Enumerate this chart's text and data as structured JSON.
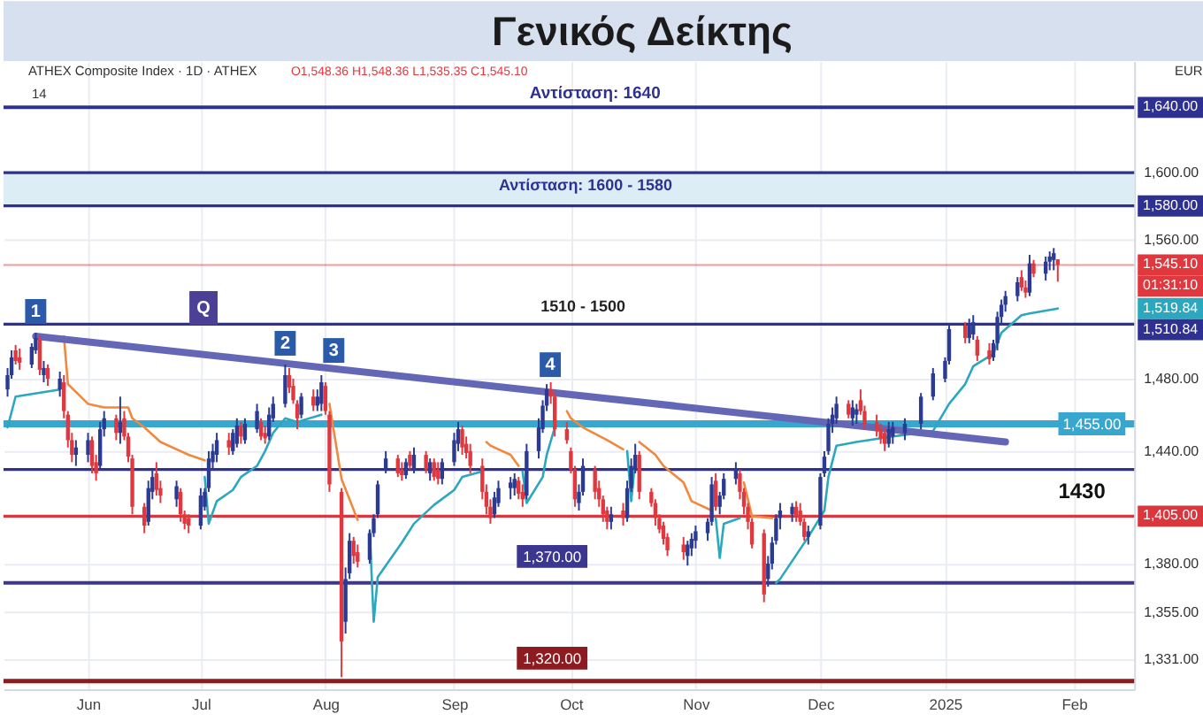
{
  "chart_data": {
    "type": "candlestick",
    "title": "Γενικός Δείκτης",
    "subtitle": "ATHEX Composite Index · 1D · ATHEX",
    "x": [
      "2024-05-14",
      "2024-05-15",
      "2024-05-16",
      "2024-05-17",
      "2024-05-20",
      "2024-05-21",
      "2024-05-22",
      "2024-05-23",
      "2024-05-24",
      "2024-05-27",
      "2024-05-28",
      "2024-05-29",
      "2024-05-30",
      "2024-05-31",
      "2024-06-03",
      "2024-06-04",
      "2024-06-05",
      "2024-06-06",
      "2024-06-07",
      "2024-06-10",
      "2024-06-11",
      "2024-06-12",
      "2024-06-13",
      "2024-06-14",
      "2024-06-17",
      "2024-06-18",
      "2024-06-19",
      "2024-06-20",
      "2024-06-21",
      "2024-06-25",
      "2024-06-26",
      "2024-06-27",
      "2024-06-28",
      "2024-07-01",
      "2024-07-02",
      "2024-07-03",
      "2024-07-04",
      "2024-07-05",
      "2024-07-08",
      "2024-07-09",
      "2024-07-10",
      "2024-07-11",
      "2024-07-12",
      "2024-07-15",
      "2024-07-16",
      "2024-07-17",
      "2024-07-18",
      "2024-07-19",
      "2024-07-22",
      "2024-07-23",
      "2024-07-24",
      "2024-07-25",
      "2024-07-26",
      "2024-07-29",
      "2024-07-30",
      "2024-07-31",
      "2024-08-01",
      "2024-08-02",
      "2024-08-05",
      "2024-08-06",
      "2024-08-07",
      "2024-08-08",
      "2024-08-09",
      "2024-08-12",
      "2024-08-13",
      "2024-08-14",
      "2024-08-16",
      "2024-08-19",
      "2024-08-20",
      "2024-08-21",
      "2024-08-22",
      "2024-08-23",
      "2024-08-26",
      "2024-08-27",
      "2024-08-28",
      "2024-08-29",
      "2024-08-30",
      "2024-09-02",
      "2024-09-03",
      "2024-09-04",
      "2024-09-05",
      "2024-09-06",
      "2024-09-09",
      "2024-09-10",
      "2024-09-11",
      "2024-09-12",
      "2024-09-13",
      "2024-09-16",
      "2024-09-17",
      "2024-09-18",
      "2024-09-19",
      "2024-09-20",
      "2024-09-23",
      "2024-09-24",
      "2024-09-25",
      "2024-09-26",
      "2024-09-27",
      "2024-09-30",
      "2024-10-01",
      "2024-10-02",
      "2024-10-03",
      "2024-10-04",
      "2024-10-07",
      "2024-10-08",
      "2024-10-09",
      "2024-10-10",
      "2024-10-11",
      "2024-10-14",
      "2024-10-15",
      "2024-10-16",
      "2024-10-17",
      "2024-10-18",
      "2024-10-21",
      "2024-10-22",
      "2024-10-23",
      "2024-10-24",
      "2024-10-25",
      "2024-10-29",
      "2024-10-30",
      "2024-10-31",
      "2024-11-01",
      "2024-11-04",
      "2024-11-05",
      "2024-11-06",
      "2024-11-07",
      "2024-11-08",
      "2024-11-11",
      "2024-11-12",
      "2024-11-13",
      "2024-11-14",
      "2024-11-15",
      "2024-11-18",
      "2024-11-19",
      "2024-11-20",
      "2024-11-21",
      "2024-11-22",
      "2024-11-25",
      "2024-11-26",
      "2024-11-27",
      "2024-11-28",
      "2024-11-29",
      "2024-12-02",
      "2024-12-03",
      "2024-12-04",
      "2024-12-05",
      "2024-12-06",
      "2024-12-09",
      "2024-12-10",
      "2024-12-11",
      "2024-12-12",
      "2024-12-13",
      "2024-12-16",
      "2024-12-17",
      "2024-12-18",
      "2024-12-19",
      "2024-12-20",
      "2024-12-23",
      "2024-12-27",
      "2024-12-30",
      "2025-01-02",
      "2025-01-03",
      "2025-01-07",
      "2025-01-08",
      "2025-01-09",
      "2025-01-10",
      "2025-01-13",
      "2025-01-14",
      "2025-01-15",
      "2025-01-16",
      "2025-01-17",
      "2025-01-20",
      "2025-01-21",
      "2025-01-22",
      "2025-01-23",
      "2025-01-24",
      "2025-01-27",
      "2025-01-28",
      "2025-01-29",
      "2025-01-30"
    ],
    "ohlc": [
      [
        1474,
        1486,
        1470,
        1482
      ],
      [
        1482,
        1496,
        1480,
        1492
      ],
      [
        1496,
        1499,
        1488,
        1490
      ],
      [
        1492,
        1497,
        1485,
        1489
      ],
      [
        1488,
        1500,
        1486,
        1498
      ],
      [
        1496,
        1506,
        1494,
        1503
      ],
      [
        1502,
        1504,
        1482,
        1485
      ],
      [
        1482,
        1490,
        1478,
        1486
      ],
      [
        1486,
        1488,
        1476,
        1480
      ],
      [
        1474,
        1484,
        1470,
        1480
      ],
      [
        1478,
        1482,
        1458,
        1462
      ],
      [
        1460,
        1462,
        1442,
        1446
      ],
      [
        1446,
        1450,
        1434,
        1438
      ],
      [
        1438,
        1446,
        1432,
        1442
      ],
      [
        1438,
        1450,
        1434,
        1446
      ],
      [
        1446,
        1448,
        1428,
        1432
      ],
      [
        1434,
        1438,
        1424,
        1428
      ],
      [
        1432,
        1456,
        1430,
        1452
      ],
      [
        1452,
        1462,
        1448,
        1458
      ],
      [
        1458,
        1460,
        1446,
        1450
      ],
      [
        1450,
        1470,
        1444,
        1456
      ],
      [
        1458,
        1462,
        1446,
        1448
      ],
      [
        1448,
        1450,
        1434,
        1437
      ],
      [
        1436,
        1438,
        1406,
        1410
      ],
      [
        1410,
        1412,
        1396,
        1400
      ],
      [
        1402,
        1424,
        1400,
        1420
      ],
      [
        1418,
        1430,
        1414,
        1426
      ],
      [
        1428,
        1434,
        1416,
        1419
      ],
      [
        1420,
        1424,
        1412,
        1416
      ],
      [
        1414,
        1424,
        1410,
        1421
      ],
      [
        1418,
        1420,
        1402,
        1406
      ],
      [
        1406,
        1408,
        1398,
        1401
      ],
      [
        1404,
        1406,
        1396,
        1400
      ],
      [
        1400,
        1420,
        1398,
        1416
      ],
      [
        1410,
        1420,
        1408,
        1418
      ],
      [
        1420,
        1440,
        1418,
        1436
      ],
      [
        1434,
        1444,
        1430,
        1440
      ],
      [
        1438,
        1450,
        1434,
        1446
      ],
      [
        1446,
        1450,
        1438,
        1442
      ],
      [
        1440,
        1452,
        1438,
        1450
      ],
      [
        1444,
        1458,
        1442,
        1454
      ],
      [
        1454,
        1456,
        1444,
        1448
      ],
      [
        1446,
        1458,
        1444,
        1455
      ],
      [
        1452,
        1466,
        1450,
        1462
      ],
      [
        1456,
        1458,
        1446,
        1448
      ],
      [
        1450,
        1454,
        1444,
        1447
      ],
      [
        1448,
        1464,
        1446,
        1460
      ],
      [
        1458,
        1470,
        1456,
        1466
      ],
      [
        1466,
        1488,
        1464,
        1482
      ],
      [
        1482,
        1486,
        1472,
        1475
      ],
      [
        1476,
        1480,
        1466,
        1468
      ],
      [
        1466,
        1468,
        1452,
        1458
      ],
      [
        1460,
        1472,
        1458,
        1470
      ],
      [
        1470,
        1474,
        1462,
        1465
      ],
      [
        1465,
        1474,
        1462,
        1470
      ],
      [
        1466,
        1482,
        1462,
        1478
      ],
      [
        1476,
        1478,
        1460,
        1462
      ],
      [
        1460,
        1462,
        1418,
        1422
      ],
      [
        1418,
        1420,
        1322,
        1340
      ],
      [
        1350,
        1378,
        1344,
        1372
      ],
      [
        1375,
        1396,
        1372,
        1392
      ],
      [
        1392,
        1394,
        1380,
        1384
      ],
      [
        1386,
        1390,
        1378,
        1381
      ],
      [
        1382,
        1398,
        1380,
        1396
      ],
      [
        1396,
        1406,
        1394,
        1404
      ],
      [
        1406,
        1424,
        1404,
        1422
      ],
      [
        1430,
        1440,
        1428,
        1436
      ],
      [
        1436,
        1438,
        1426,
        1428
      ],
      [
        1430,
        1434,
        1424,
        1427
      ],
      [
        1427,
        1436,
        1425,
        1434
      ],
      [
        1438,
        1440,
        1430,
        1432
      ],
      [
        1430,
        1442,
        1428,
        1438
      ],
      [
        1438,
        1440,
        1428,
        1430
      ],
      [
        1428,
        1436,
        1424,
        1434
      ],
      [
        1434,
        1436,
        1424,
        1426
      ],
      [
        1430,
        1434,
        1422,
        1425
      ],
      [
        1425,
        1436,
        1422,
        1434
      ],
      [
        1434,
        1450,
        1432,
        1446
      ],
      [
        1444,
        1456,
        1440,
        1452
      ],
      [
        1452,
        1454,
        1438,
        1442
      ],
      [
        1444,
        1448,
        1436,
        1439
      ],
      [
        1440,
        1444,
        1428,
        1432
      ],
      [
        1432,
        1436,
        1414,
        1418
      ],
      [
        1418,
        1422,
        1406,
        1410
      ],
      [
        1410,
        1414,
        1401,
        1404
      ],
      [
        1406,
        1418,
        1404,
        1415
      ],
      [
        1412,
        1424,
        1410,
        1420
      ],
      [
        1420,
        1426,
        1414,
        1423
      ],
      [
        1420,
        1428,
        1416,
        1425
      ],
      [
        1424,
        1426,
        1414,
        1417
      ],
      [
        1418,
        1422,
        1410,
        1414
      ],
      [
        1416,
        1444,
        1414,
        1440
      ],
      [
        1440,
        1458,
        1436,
        1453
      ],
      [
        1452,
        1468,
        1450,
        1465
      ],
      [
        1465,
        1477,
        1462,
        1474
      ],
      [
        1474,
        1478,
        1466,
        1470
      ],
      [
        1470,
        1472,
        1448,
        1452
      ],
      [
        1452,
        1456,
        1444,
        1446
      ],
      [
        1440,
        1442,
        1428,
        1430
      ],
      [
        1430,
        1432,
        1410,
        1414
      ],
      [
        1412,
        1422,
        1408,
        1418
      ],
      [
        1418,
        1436,
        1416,
        1432
      ],
      [
        1430,
        1432,
        1414,
        1418
      ],
      [
        1420,
        1424,
        1410,
        1414
      ],
      [
        1414,
        1416,
        1402,
        1406
      ],
      [
        1408,
        1410,
        1398,
        1402
      ],
      [
        1402,
        1410,
        1398,
        1406
      ],
      [
        1408,
        1412,
        1400,
        1404
      ],
      [
        1404,
        1424,
        1402,
        1420
      ],
      [
        1420,
        1436,
        1418,
        1432
      ],
      [
        1430,
        1444,
        1428,
        1438
      ],
      [
        1438,
        1440,
        1414,
        1418
      ],
      [
        1418,
        1420,
        1410,
        1412
      ],
      [
        1412,
        1414,
        1400,
        1404
      ],
      [
        1404,
        1406,
        1396,
        1398
      ],
      [
        1400,
        1402,
        1390,
        1393
      ],
      [
        1394,
        1396,
        1384,
        1387
      ],
      [
        1390,
        1394,
        1382,
        1386
      ],
      [
        1384,
        1392,
        1379,
        1390
      ],
      [
        1388,
        1396,
        1384,
        1393
      ],
      [
        1392,
        1400,
        1388,
        1397
      ],
      [
        1396,
        1404,
        1392,
        1402
      ],
      [
        1402,
        1426,
        1400,
        1422
      ],
      [
        1424,
        1428,
        1408,
        1410
      ],
      [
        1410,
        1418,
        1406,
        1416
      ],
      [
        1416,
        1428,
        1414,
        1425
      ],
      [
        1425,
        1434,
        1422,
        1430
      ],
      [
        1428,
        1430,
        1414,
        1418
      ],
      [
        1418,
        1420,
        1406,
        1410
      ],
      [
        1410,
        1412,
        1398,
        1402
      ],
      [
        1402,
        1404,
        1388,
        1390
      ],
      [
        1396,
        1398,
        1360,
        1364
      ],
      [
        1372,
        1384,
        1368,
        1380
      ],
      [
        1380,
        1394,
        1377,
        1391
      ],
      [
        1392,
        1406,
        1390,
        1404
      ],
      [
        1404,
        1412,
        1398,
        1408
      ],
      [
        1406,
        1412,
        1402,
        1410
      ],
      [
        1410,
        1413,
        1402,
        1405
      ],
      [
        1408,
        1412,
        1400,
        1402
      ],
      [
        1402,
        1404,
        1392,
        1394
      ],
      [
        1394,
        1400,
        1390,
        1397
      ],
      [
        1400,
        1428,
        1398,
        1426
      ],
      [
        1428,
        1440,
        1426,
        1437
      ],
      [
        1440,
        1458,
        1438,
        1455
      ],
      [
        1455,
        1464,
        1450,
        1460
      ],
      [
        1458,
        1470,
        1455,
        1466
      ],
      [
        1466,
        1468,
        1458,
        1460
      ],
      [
        1458,
        1468,
        1454,
        1464
      ],
      [
        1460,
        1466,
        1455,
        1463
      ],
      [
        1468,
        1474,
        1460,
        1462
      ],
      [
        1462,
        1465,
        1452,
        1455
      ],
      [
        1456,
        1460,
        1448,
        1451
      ],
      [
        1452,
        1455,
        1444,
        1447
      ],
      [
        1450,
        1453,
        1440,
        1444
      ],
      [
        1444,
        1456,
        1442,
        1452
      ],
      [
        1448,
        1456,
        1444,
        1453
      ],
      [
        1450,
        1458,
        1446,
        1455
      ],
      [
        1455,
        1472,
        1452,
        1470
      ],
      [
        1470,
        1486,
        1468,
        1483
      ],
      [
        1480,
        1492,
        1478,
        1490
      ],
      [
        1490,
        1510,
        1488,
        1508
      ],
      [
        1510,
        1512,
        1500,
        1503
      ],
      [
        1503,
        1514,
        1500,
        1510
      ],
      [
        1505,
        1516,
        1502,
        1512
      ],
      [
        1502,
        1504,
        1490,
        1493
      ],
      [
        1496,
        1500,
        1488,
        1491
      ],
      [
        1492,
        1502,
        1490,
        1500
      ],
      [
        1500,
        1518,
        1496,
        1515
      ],
      [
        1515,
        1525,
        1510,
        1522
      ],
      [
        1522,
        1530,
        1518,
        1527
      ],
      [
        1527,
        1538,
        1524,
        1535
      ],
      [
        1538,
        1542,
        1530,
        1532
      ],
      [
        1532,
        1536,
        1526,
        1529
      ],
      [
        1529,
        1551,
        1527,
        1546
      ],
      [
        1546,
        1548,
        1538,
        1540
      ],
      [
        1540,
        1550,
        1536,
        1547
      ],
      [
        1547,
        1553,
        1542,
        1550
      ],
      [
        1548,
        1555,
        1542,
        1552
      ],
      [
        1548.36,
        1548.36,
        1535.35,
        1545.1
      ]
    ],
    "colors": [
      "#2b3a93",
      "#2b3a93",
      "#e0383e",
      "#e0383e",
      "#2b3a93",
      "#2b3a93",
      "#e0383e",
      "#2b3a93",
      "#e0383e",
      "#2b3a93",
      "#e0383e",
      "#e0383e",
      "#e0383e",
      "#2b3a93",
      "#2b3a93",
      "#e0383e",
      "#e0383e",
      "#2b3a93",
      "#2b3a93",
      "#e0383e",
      "#2b3a93",
      "#e0383e",
      "#e0383e",
      "#e0383e",
      "#e0383e",
      "#2b3a93",
      "#2b3a93",
      "#e0383e",
      "#e0383e",
      "#2b3a93",
      "#e0383e",
      "#e0383e",
      "#e0383e",
      "#2b3a93",
      "#2b3a93",
      "#2b3a93",
      "#2b3a93",
      "#2b3a93",
      "#e0383e",
      "#2b3a93",
      "#2b3a93",
      "#e0383e",
      "#2b3a93",
      "#2b3a93",
      "#e0383e",
      "#e0383e",
      "#2b3a93",
      "#2b3a93",
      "#2b3a93",
      "#e0383e",
      "#e0383e",
      "#e0383e",
      "#2b3a93",
      "#e0383e",
      "#2b3a93",
      "#2b3a93",
      "#e0383e",
      "#e0383e",
      "#e0383e",
      "#2b3a93",
      "#2b3a93",
      "#e0383e",
      "#e0383e",
      "#2b3a93",
      "#2b3a93",
      "#2b3a93",
      "#2b3a93",
      "#e0383e",
      "#e0383e",
      "#2b3a93",
      "#e0383e",
      "#2b3a93",
      "#e0383e",
      "#2b3a93",
      "#e0383e",
      "#e0383e",
      "#2b3a93",
      "#2b3a93",
      "#2b3a93",
      "#e0383e",
      "#e0383e",
      "#e0383e",
      "#e0383e",
      "#e0383e",
      "#e0383e",
      "#2b3a93",
      "#2b3a93",
      "#2b3a93",
      "#2b3a93",
      "#e0383e",
      "#e0383e",
      "#2b3a93",
      "#2b3a93",
      "#2b3a93",
      "#2b3a93",
      "#e0383e",
      "#e0383e",
      "#e0383e",
      "#e0383e",
      "#e0383e",
      "#2b3a93",
      "#2b3a93",
      "#e0383e",
      "#e0383e",
      "#e0383e",
      "#e0383e",
      "#2b3a93",
      "#e0383e",
      "#2b3a93",
      "#2b3a93",
      "#2b3a93",
      "#e0383e",
      "#e0383e",
      "#e0383e",
      "#e0383e",
      "#e0383e",
      "#e0383e",
      "#e0383e",
      "#2b3a93",
      "#2b3a93",
      "#2b3a93",
      "#2b3a93",
      "#2b3a93",
      "#e0383e",
      "#2b3a93",
      "#2b3a93",
      "#2b3a93",
      "#e0383e",
      "#e0383e",
      "#e0383e",
      "#e0383e",
      "#e0383e",
      "#2b3a93",
      "#2b3a93",
      "#2b3a93",
      "#2b3a93",
      "#2b3a93",
      "#e0383e",
      "#e0383e",
      "#e0383e",
      "#2b3a93",
      "#2b3a93",
      "#2b3a93",
      "#2b3a93",
      "#2b3a93",
      "#2b3a93",
      "#e0383e",
      "#2b3a93",
      "#2b3a93",
      "#e0383e",
      "#e0383e",
      "#e0383e",
      "#e0383e",
      "#e0383e",
      "#2b3a93",
      "#2b3a93",
      "#2b3a93",
      "#2b3a93",
      "#2b3a93",
      "#2b3a93",
      "#2b3a93",
      "#e0383e",
      "#2b3a93",
      "#2b3a93",
      "#e0383e",
      "#e0383e",
      "#2b3a93",
      "#2b3a93",
      "#2b3a93",
      "#2b3a93",
      "#2b3a93",
      "#e0383e",
      "#e0383e",
      "#2b3a93",
      "#e0383e",
      "#2b3a93",
      "#2b3a93",
      "#2b3a93",
      "#e0383e"
    ],
    "series": [
      {
        "type": "line",
        "color": "#f0883e",
        "x": [
          "2024-05-28",
          "2024-05-29",
          "2024-06-03",
          "2024-06-07",
          "2024-06-13",
          "2024-06-14",
          "2024-06-17",
          "2024-06-21",
          "2024-06-28",
          "2024-07-02",
          "2024-07-03",
          "2024-08-02",
          "2024-08-05",
          "2024-08-09",
          "2024-08-12",
          "2024-09-10",
          "2024-09-11",
          "2024-09-16",
          "2024-09-18",
          "2024-09-19",
          "2024-09-30",
          "2024-10-01",
          "2024-10-04",
          "2024-10-10",
          "2024-10-14",
          "2024-10-15",
          "2024-10-18",
          "2024-10-22",
          "2024-10-24",
          "2024-10-29",
          "2024-10-31",
          "2024-11-05",
          "2024-11-06",
          "2024-11-13",
          "2024-11-15",
          "2024-11-20"
        ],
        "values": [
          1504,
          1477,
          1466,
          1464,
          1464,
          1458,
          1453,
          1445,
          1438,
          1435,
          null,
          1466,
          1425,
          1403,
          null,
          1445,
          1443,
          1438,
          1432,
          null,
          1462,
          1458,
          1453,
          1446,
          1441,
          null,
          1445,
          1438,
          1432,
          1423,
          1413,
          1408,
          null,
          1423,
          1405,
          1404
        ]
      },
      {
        "type": "line",
        "color": "#2ba8bd",
        "x": [
          "2024-05-14",
          "2024-05-16",
          "2024-05-27",
          "2024-05-28",
          "2024-07-02",
          "2024-07-03",
          "2024-07-05",
          "2024-07-09",
          "2024-07-11",
          "2024-07-15",
          "2024-07-17",
          "2024-07-19",
          "2024-07-22",
          "2024-07-25",
          "2024-07-31",
          "2024-08-01",
          "2024-08-12",
          "2024-08-13",
          "2024-08-14",
          "2024-08-20",
          "2024-08-23",
          "2024-08-28",
          "2024-09-02",
          "2024-09-04",
          "2024-09-09",
          "2024-09-10",
          "2024-09-19",
          "2024-09-20",
          "2024-09-24",
          "2024-09-25",
          "2024-09-27",
          "2024-09-30",
          "2024-10-15",
          "2024-10-16",
          "2024-10-17",
          "2024-10-18",
          "2024-11-06",
          "2024-11-07",
          "2024-11-08",
          "2024-11-12",
          "2024-11-13",
          "2024-11-21",
          "2024-11-22",
          "2024-11-29",
          "2024-12-03",
          "2024-12-04",
          "2024-12-06",
          "2024-12-11",
          "2024-12-20",
          "2024-12-30",
          "2025-01-03",
          "2025-01-07",
          "2025-01-09",
          "2025-01-14",
          "2025-01-16",
          "2025-01-21",
          "2025-01-23",
          "2025-01-30"
        ],
        "values": [
          1453,
          1470,
          1474,
          null,
          1426,
          1401,
          1413,
          1419,
          1426,
          1432,
          1440,
          1450,
          1458,
          1456,
          1460,
          null,
          1397,
          1350,
          1373,
          1391,
          1401,
          1411,
          1419,
          1426,
          1429,
          null,
          1429,
          1412,
          1426,
          1438,
          1453,
          null,
          1440,
          1413,
          1435,
          null,
          1404,
          1383,
          1401,
          1404,
          null,
          1370,
          1372,
          1394,
          1408,
          1426,
          1443,
          1445,
          1448,
          1451,
          1466,
          1477,
          1487,
          1494,
          1506,
          1516,
          1517,
          1519.84
        ]
      },
      {
        "type": "line",
        "color": "#6466b6",
        "x": [
          "2024-05-21",
          "2025-01-17"
        ],
        "values": [
          1504,
          1445
        ]
      }
    ],
    "xlim": [
      "2024-05-13",
      "2025-02-18"
    ],
    "xticks": [
      {
        "value": "2024-06-03",
        "label": "Jun"
      },
      {
        "value": "2024-07-01",
        "label": "Jul"
      },
      {
        "value": "2024-08-01",
        "label": "Aug"
      },
      {
        "value": "2024-09-02",
        "label": "Sep"
      },
      {
        "value": "2024-10-01",
        "label": "Oct"
      },
      {
        "value": "2024-11-01",
        "label": "Nov"
      },
      {
        "value": "2024-12-02",
        "label": "Dec"
      },
      {
        "value": "2025-01-02",
        "label": "2025"
      },
      {
        "value": "2025-02-03",
        "label": "Feb"
      }
    ],
    "ylim": [
      1316,
      1669
    ],
    "yticks": [
      {
        "value": 1331,
        "label": "1,331.00"
      },
      {
        "value": 1355,
        "label": "1,355.00"
      },
      {
        "value": 1380,
        "label": "1,380.00"
      },
      {
        "value": 1440,
        "label": "1,440.00"
      },
      {
        "value": 1480,
        "label": "1,480.00"
      },
      {
        "value": 1560,
        "label": "1,560.00"
      },
      {
        "value": 1600,
        "label": "1,600.00"
      }
    ],
    "log": true,
    "grid": true,
    "ref_lines": [
      {
        "axis": "y",
        "value": 1640,
        "label": "1,640.00",
        "color": "#2e3192"
      },
      {
        "axis": "y",
        "value": 1600,
        "color": "#2e3192"
      },
      {
        "axis": "y",
        "value": 1580,
        "label": "1,580.00",
        "color": "#2e3192"
      },
      {
        "axis": "y",
        "value": 1545.1,
        "label": "1,545.10",
        "color": "#e0383e"
      },
      {
        "axis": "y",
        "value": 1510.84,
        "label": "1,510.84",
        "color": "#2e3192"
      },
      {
        "axis": "y",
        "value": 1455,
        "label": "1,455.00",
        "color": "#37a7cf"
      },
      {
        "axis": "y",
        "value": 1430,
        "color": "#2e3192"
      },
      {
        "axis": "y",
        "value": 1405,
        "label": "1,405.00",
        "color": "#d9363e"
      },
      {
        "axis": "y",
        "value": 1370,
        "label": "1,370.00",
        "color": "#3b3790"
      },
      {
        "axis": "y",
        "value": 1320,
        "label": "1,320.00",
        "color": "#8e1b1f"
      }
    ],
    "bands": [
      {
        "axis": "y",
        "from": 1580,
        "to": 1600,
        "label": "Αντίσταση: 1600 - 1580",
        "color": "#dcedf6"
      }
    ],
    "annotations": [
      {
        "text": "Αντίσταση: 1640",
        "x": "2024-10-07",
        "y": 1640
      },
      {
        "text": "1510 - 1500",
        "x": "2024-10-04",
        "y": 1510.84
      },
      {
        "text": "1430",
        "x": "2025-02-05",
        "y": 1430
      },
      {
        "text": "1",
        "x": "2024-05-21",
        "y": 1506
      },
      {
        "text": "2",
        "x": "2024-07-22",
        "y": 1488
      },
      {
        "text": "3",
        "x": "2024-07-31",
        "y": 1482
      },
      {
        "text": "4",
        "x": "2024-09-25",
        "y": 1477
      },
      {
        "text": "Q",
        "x": "2024-06-26",
        "y": 1495
      },
      "O1,548.36 H1,548.36 L1,535.35 C1,545.10",
      "14",
      "EUR",
      "01:31:10",
      {
        "text": "1,519.84",
        "y": 1519.84
      }
    ]
  }
}
